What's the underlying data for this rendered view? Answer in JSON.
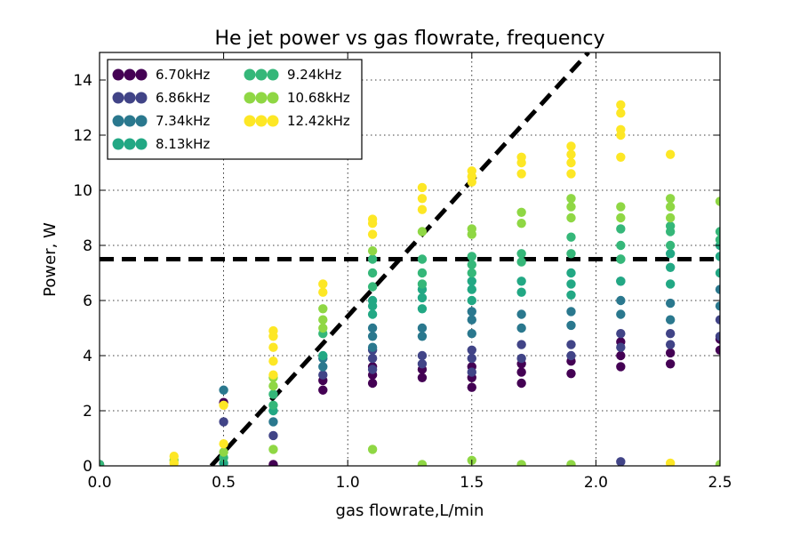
{
  "chart_data": {
    "type": "scatter",
    "title": "He jet power vs gas flowrate, frequency",
    "xlabel": "gas flowrate,L/min",
    "ylabel": "Power, W",
    "xlim": [
      0.0,
      2.5
    ],
    "ylim": [
      0,
      15
    ],
    "xticks": [
      0.0,
      0.5,
      1.0,
      1.5,
      2.0,
      2.5
    ],
    "xtick_labels": [
      "0.0",
      "0.5",
      "1.0",
      "1.5",
      "2.0",
      "2.5"
    ],
    "yticks": [
      0,
      2,
      4,
      6,
      8,
      10,
      12,
      14
    ],
    "ytick_labels": [
      "0",
      "2",
      "4",
      "6",
      "8",
      "10",
      "12",
      "14"
    ],
    "grid": true,
    "legend_position": "top-left",
    "series": [
      {
        "name": "6.70kHz",
        "color": "#440154",
        "points": [
          [
            0.0,
            0.05
          ],
          [
            0.5,
            2.3
          ],
          [
            0.7,
            0.05
          ],
          [
            0.9,
            2.75
          ],
          [
            0.9,
            3.1
          ],
          [
            1.1,
            3.0
          ],
          [
            1.1,
            3.3
          ],
          [
            1.1,
            3.6
          ],
          [
            1.3,
            3.2
          ],
          [
            1.3,
            3.5
          ],
          [
            1.5,
            2.85
          ],
          [
            1.5,
            3.2
          ],
          [
            1.5,
            3.6
          ],
          [
            1.7,
            3.0
          ],
          [
            1.7,
            3.4
          ],
          [
            1.7,
            3.7
          ],
          [
            1.9,
            3.35
          ],
          [
            1.9,
            3.8
          ],
          [
            2.1,
            3.6
          ],
          [
            2.1,
            4.0
          ],
          [
            2.1,
            4.5
          ],
          [
            2.3,
            3.7
          ],
          [
            2.3,
            4.1
          ],
          [
            2.5,
            4.2
          ],
          [
            2.5,
            4.6
          ]
        ]
      },
      {
        "name": "6.86kHz",
        "color": "#414487",
        "points": [
          [
            0.5,
            1.6
          ],
          [
            0.7,
            1.1
          ],
          [
            0.9,
            3.3
          ],
          [
            1.1,
            3.5
          ],
          [
            1.1,
            3.9
          ],
          [
            1.1,
            4.2
          ],
          [
            1.3,
            3.7
          ],
          [
            1.3,
            4.0
          ],
          [
            1.5,
            3.4
          ],
          [
            1.5,
            3.9
          ],
          [
            1.5,
            4.2
          ],
          [
            1.7,
            3.9
          ],
          [
            1.7,
            4.4
          ],
          [
            1.9,
            4.0
          ],
          [
            1.9,
            4.4
          ],
          [
            2.1,
            0.15
          ],
          [
            2.1,
            4.3
          ],
          [
            2.1,
            4.8
          ],
          [
            2.3,
            4.4
          ],
          [
            2.3,
            4.8
          ],
          [
            2.5,
            4.7
          ],
          [
            2.5,
            5.3
          ]
        ]
      },
      {
        "name": "7.34kHz",
        "color": "#2a788e",
        "points": [
          [
            0.5,
            2.75
          ],
          [
            0.7,
            1.6
          ],
          [
            0.9,
            3.6
          ],
          [
            0.9,
            3.9
          ],
          [
            1.1,
            4.3
          ],
          [
            1.1,
            4.7
          ],
          [
            1.1,
            5.0
          ],
          [
            1.3,
            4.7
          ],
          [
            1.3,
            5.0
          ],
          [
            1.5,
            4.8
          ],
          [
            1.5,
            5.3
          ],
          [
            1.5,
            5.6
          ],
          [
            1.7,
            5.0
          ],
          [
            1.7,
            5.5
          ],
          [
            1.9,
            5.1
          ],
          [
            1.9,
            5.6
          ],
          [
            2.1,
            5.5
          ],
          [
            2.1,
            6.0
          ],
          [
            2.1,
            6.7
          ],
          [
            2.3,
            5.3
          ],
          [
            2.3,
            5.9
          ],
          [
            2.5,
            5.8
          ],
          [
            2.5,
            6.4
          ]
        ]
      },
      {
        "name": "8.13kHz",
        "color": "#22a884",
        "points": [
          [
            0.5,
            0.1
          ],
          [
            0.7,
            2.0
          ],
          [
            0.9,
            4.0
          ],
          [
            1.1,
            5.5
          ],
          [
            1.1,
            5.8
          ],
          [
            1.1,
            6.0
          ],
          [
            1.3,
            5.7
          ],
          [
            1.3,
            6.1
          ],
          [
            1.3,
            6.4
          ],
          [
            1.5,
            6.0
          ],
          [
            1.5,
            6.4
          ],
          [
            1.5,
            6.7
          ],
          [
            1.7,
            6.3
          ],
          [
            1.7,
            6.7
          ],
          [
            1.9,
            6.2
          ],
          [
            1.9,
            6.6
          ],
          [
            1.9,
            7.0
          ],
          [
            2.1,
            6.7
          ],
          [
            2.1,
            7.5
          ],
          [
            2.3,
            6.6
          ],
          [
            2.3,
            7.2
          ],
          [
            2.3,
            7.7
          ],
          [
            2.5,
            7.0
          ],
          [
            2.5,
            7.6
          ],
          [
            2.5,
            8.0
          ]
        ]
      },
      {
        "name": "9.24kHz",
        "color": "#35b779",
        "points": [
          [
            0.0,
            0.05
          ],
          [
            0.5,
            0.3
          ],
          [
            0.7,
            2.2
          ],
          [
            0.7,
            2.6
          ],
          [
            0.9,
            4.8
          ],
          [
            1.1,
            6.5
          ],
          [
            1.1,
            7.0
          ],
          [
            1.1,
            7.5
          ],
          [
            1.3,
            6.6
          ],
          [
            1.3,
            7.0
          ],
          [
            1.3,
            7.5
          ],
          [
            1.5,
            7.0
          ],
          [
            1.5,
            7.3
          ],
          [
            1.5,
            7.6
          ],
          [
            1.7,
            7.4
          ],
          [
            1.7,
            7.7
          ],
          [
            1.9,
            7.7
          ],
          [
            1.9,
            8.3
          ],
          [
            2.1,
            7.5
          ],
          [
            2.1,
            8.0
          ],
          [
            2.1,
            8.6
          ],
          [
            2.3,
            8.0
          ],
          [
            2.3,
            8.5
          ],
          [
            2.3,
            8.7
          ],
          [
            2.5,
            8.2
          ],
          [
            2.5,
            8.5
          ]
        ]
      },
      {
        "name": "10.68kHz",
        "color": "#8fd744",
        "points": [
          [
            0.3,
            0.2
          ],
          [
            0.5,
            0.5
          ],
          [
            0.7,
            0.6
          ],
          [
            0.7,
            2.9
          ],
          [
            0.7,
            3.2
          ],
          [
            0.9,
            5.0
          ],
          [
            0.9,
            5.3
          ],
          [
            0.9,
            5.7
          ],
          [
            1.1,
            0.6
          ],
          [
            1.1,
            7.8
          ],
          [
            1.3,
            0.05
          ],
          [
            1.3,
            8.5
          ],
          [
            1.5,
            0.2
          ],
          [
            1.5,
            8.4
          ],
          [
            1.5,
            8.6
          ],
          [
            1.7,
            0.05
          ],
          [
            1.7,
            8.8
          ],
          [
            1.7,
            9.2
          ],
          [
            1.9,
            0.05
          ],
          [
            1.9,
            9.0
          ],
          [
            1.9,
            9.4
          ],
          [
            1.9,
            9.7
          ],
          [
            2.1,
            9.0
          ],
          [
            2.1,
            9.4
          ],
          [
            2.3,
            9.0
          ],
          [
            2.3,
            9.4
          ],
          [
            2.3,
            9.7
          ],
          [
            2.5,
            0.05
          ],
          [
            2.5,
            9.6
          ]
        ]
      },
      {
        "name": "12.42kHz",
        "color": "#fde725",
        "points": [
          [
            0.3,
            0.1
          ],
          [
            0.3,
            0.35
          ],
          [
            0.5,
            0.8
          ],
          [
            0.5,
            2.2
          ],
          [
            0.7,
            3.3
          ],
          [
            0.7,
            3.8
          ],
          [
            0.7,
            4.3
          ],
          [
            0.7,
            4.7
          ],
          [
            0.7,
            4.9
          ],
          [
            0.9,
            6.3
          ],
          [
            0.9,
            6.6
          ],
          [
            1.1,
            8.4
          ],
          [
            1.1,
            8.8
          ],
          [
            1.1,
            8.95
          ],
          [
            1.3,
            9.3
          ],
          [
            1.3,
            9.7
          ],
          [
            1.3,
            10.1
          ],
          [
            1.5,
            10.3
          ],
          [
            1.5,
            10.5
          ],
          [
            1.5,
            10.7
          ],
          [
            1.7,
            10.6
          ],
          [
            1.7,
            11.0
          ],
          [
            1.7,
            11.2
          ],
          [
            1.9,
            10.6
          ],
          [
            1.9,
            11.0
          ],
          [
            1.9,
            11.3
          ],
          [
            1.9,
            11.6
          ],
          [
            2.1,
            11.2
          ],
          [
            2.1,
            12.0
          ],
          [
            2.1,
            12.2
          ],
          [
            2.1,
            12.8
          ],
          [
            2.1,
            13.1
          ],
          [
            2.3,
            11.3
          ],
          [
            2.3,
            0.1
          ]
        ]
      }
    ],
    "reference_lines": [
      {
        "kind": "horizontal",
        "y": 7.5,
        "style": "dashed",
        "color": "#000000"
      },
      {
        "kind": "diagonal",
        "x": [
          0.45,
          1.97
        ],
        "y": [
          0.0,
          15.0
        ],
        "style": "dashed",
        "color": "#000000"
      }
    ]
  }
}
